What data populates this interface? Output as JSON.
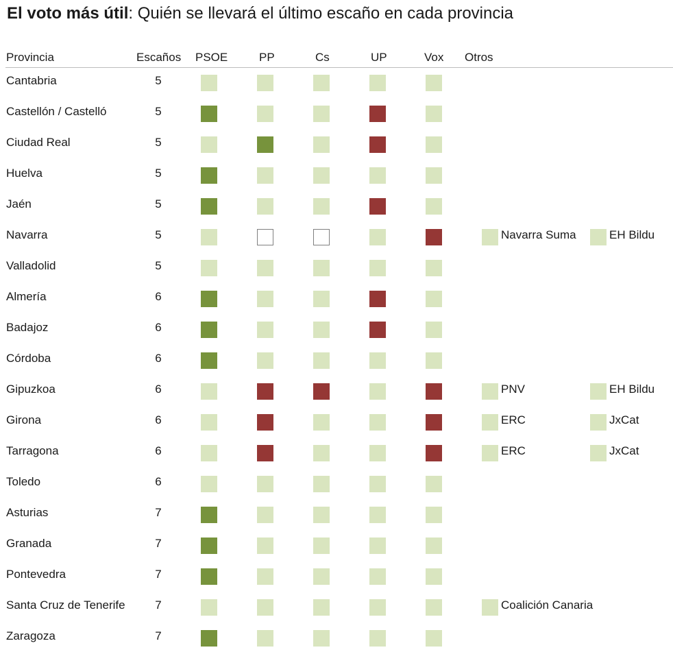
{
  "title_bold": "El voto más útil",
  "title_rest": ": Quién se llevará el último escaño en cada provincia",
  "colors": {
    "none": "#d9e5bf",
    "gains": "#77933c",
    "loses": "#953735",
    "empty_fill": "#ffffff",
    "empty_border": "#7f7f7f"
  },
  "chart_data": {
    "type": "table",
    "columns": [
      "Provincia",
      "Escaños",
      "PSOE",
      "PP",
      "Cs",
      "UP",
      "Vox",
      "Otros"
    ],
    "parties": [
      "PSOE",
      "PP",
      "Cs",
      "UP",
      "Vox"
    ],
    "state_legend": {
      "none": "light",
      "gains": "green",
      "loses": "red",
      "empty": "blank"
    },
    "rows": [
      {
        "province": "Cantabria",
        "seats": 5,
        "states": [
          "none",
          "none",
          "none",
          "none",
          "none"
        ],
        "others": []
      },
      {
        "province": "Castellón / Castelló",
        "seats": 5,
        "states": [
          "gains",
          "none",
          "none",
          "loses",
          "none"
        ],
        "others": []
      },
      {
        "province": "Ciudad Real",
        "seats": 5,
        "states": [
          "none",
          "gains",
          "none",
          "loses",
          "none"
        ],
        "others": []
      },
      {
        "province": "Huelva",
        "seats": 5,
        "states": [
          "gains",
          "none",
          "none",
          "none",
          "none"
        ],
        "others": []
      },
      {
        "province": "Jaén",
        "seats": 5,
        "states": [
          "gains",
          "none",
          "none",
          "loses",
          "none"
        ],
        "others": []
      },
      {
        "province": "Navarra",
        "seats": 5,
        "states": [
          "none",
          "empty",
          "empty",
          "none",
          "loses"
        ],
        "others": [
          {
            "name": "Navarra Suma",
            "state": "none"
          },
          {
            "name": "EH Bildu",
            "state": "none"
          }
        ]
      },
      {
        "province": "Valladolid",
        "seats": 5,
        "states": [
          "none",
          "none",
          "none",
          "none",
          "none"
        ],
        "others": []
      },
      {
        "province": "Almería",
        "seats": 6,
        "states": [
          "gains",
          "none",
          "none",
          "loses",
          "none"
        ],
        "others": []
      },
      {
        "province": "Badajoz",
        "seats": 6,
        "states": [
          "gains",
          "none",
          "none",
          "loses",
          "none"
        ],
        "others": []
      },
      {
        "province": "Córdoba",
        "seats": 6,
        "states": [
          "gains",
          "none",
          "none",
          "none",
          "none"
        ],
        "others": []
      },
      {
        "province": "Gipuzkoa",
        "seats": 6,
        "states": [
          "none",
          "loses",
          "loses",
          "none",
          "loses"
        ],
        "others": [
          {
            "name": "PNV",
            "state": "none"
          },
          {
            "name": "EH Bildu",
            "state": "none"
          }
        ]
      },
      {
        "province": "Girona",
        "seats": 6,
        "states": [
          "none",
          "loses",
          "none",
          "none",
          "loses"
        ],
        "others": [
          {
            "name": "ERC",
            "state": "none"
          },
          {
            "name": "JxCat",
            "state": "none"
          }
        ]
      },
      {
        "province": "Tarragona",
        "seats": 6,
        "states": [
          "none",
          "loses",
          "none",
          "none",
          "loses"
        ],
        "others": [
          {
            "name": "ERC",
            "state": "none"
          },
          {
            "name": "JxCat",
            "state": "none"
          }
        ]
      },
      {
        "province": "Toledo",
        "seats": 6,
        "states": [
          "none",
          "none",
          "none",
          "none",
          "none"
        ],
        "others": []
      },
      {
        "province": "Asturias",
        "seats": 7,
        "states": [
          "gains",
          "none",
          "none",
          "none",
          "none"
        ],
        "others": []
      },
      {
        "province": "Granada",
        "seats": 7,
        "states": [
          "gains",
          "none",
          "none",
          "none",
          "none"
        ],
        "others": []
      },
      {
        "province": "Pontevedra",
        "seats": 7,
        "states": [
          "gains",
          "none",
          "none",
          "none",
          "none"
        ],
        "others": []
      },
      {
        "province": "Santa Cruz de Tenerife",
        "seats": 7,
        "states": [
          "none",
          "none",
          "none",
          "none",
          "none"
        ],
        "others": [
          {
            "name": "Coalición Canaria",
            "state": "none"
          }
        ]
      },
      {
        "province": "Zaragoza",
        "seats": 7,
        "states": [
          "gains",
          "none",
          "none",
          "none",
          "none"
        ],
        "others": []
      }
    ]
  }
}
